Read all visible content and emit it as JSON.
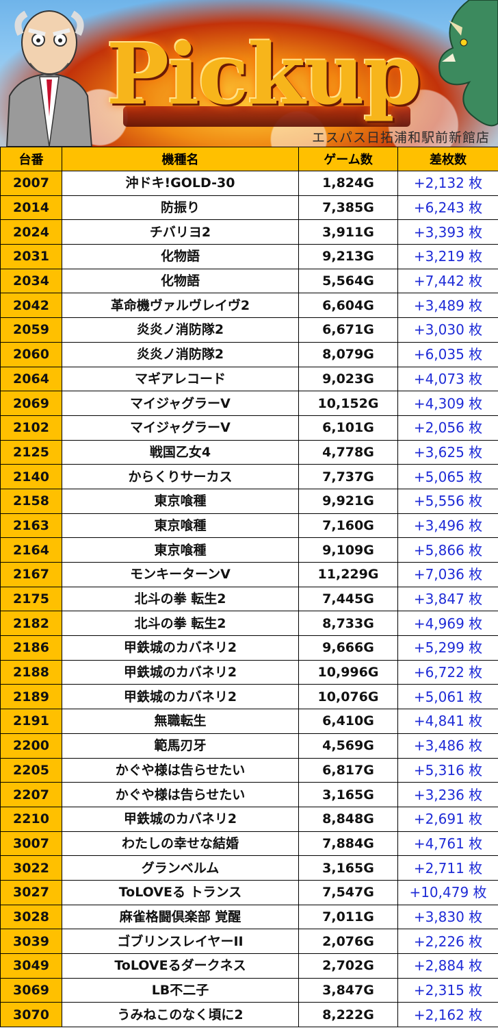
{
  "banner": {
    "logo_text": "Pickup",
    "store_name": "エスパス日拓浦和駅前新館店"
  },
  "table": {
    "headers": [
      "台番",
      "機種名",
      "ゲーム数",
      "差枚数"
    ],
    "rows": [
      {
        "no": "2007",
        "name": "沖ドキ!GOLD-30",
        "games": "1,824G",
        "diff": "+2,132 枚"
      },
      {
        "no": "2014",
        "name": "防振り",
        "games": "7,385G",
        "diff": "+6,243 枚"
      },
      {
        "no": "2024",
        "name": "チバリヨ2",
        "games": "3,911G",
        "diff": "+3,393 枚"
      },
      {
        "no": "2031",
        "name": "化物語",
        "games": "9,213G",
        "diff": "+3,219 枚"
      },
      {
        "no": "2034",
        "name": "化物語",
        "games": "5,564G",
        "diff": "+7,442 枚"
      },
      {
        "no": "2042",
        "name": "革命機ヴァルヴレイヴ2",
        "games": "6,604G",
        "diff": "+3,489 枚"
      },
      {
        "no": "2059",
        "name": "炎炎ノ消防隊2",
        "games": "6,671G",
        "diff": "+3,030 枚"
      },
      {
        "no": "2060",
        "name": "炎炎ノ消防隊2",
        "games": "8,079G",
        "diff": "+6,035 枚"
      },
      {
        "no": "2064",
        "name": "マギアレコード",
        "games": "9,023G",
        "diff": "+4,073 枚"
      },
      {
        "no": "2069",
        "name": "マイジャグラーV",
        "games": "10,152G",
        "diff": "+4,309 枚"
      },
      {
        "no": "2102",
        "name": "マイジャグラーV",
        "games": "6,101G",
        "diff": "+2,056 枚"
      },
      {
        "no": "2125",
        "name": "戦国乙女4",
        "games": "4,778G",
        "diff": "+3,625 枚"
      },
      {
        "no": "2140",
        "name": "からくりサーカス",
        "games": "7,737G",
        "diff": "+5,065 枚"
      },
      {
        "no": "2158",
        "name": "東京喰種",
        "games": "9,921G",
        "diff": "+5,556 枚"
      },
      {
        "no": "2163",
        "name": "東京喰種",
        "games": "7,160G",
        "diff": "+3,496 枚"
      },
      {
        "no": "2164",
        "name": "東京喰種",
        "games": "9,109G",
        "diff": "+5,866 枚"
      },
      {
        "no": "2167",
        "name": "モンキーターンV",
        "games": "11,229G",
        "diff": "+7,036 枚"
      },
      {
        "no": "2175",
        "name": "北斗の拳 転生2",
        "games": "7,445G",
        "diff": "+3,847 枚"
      },
      {
        "no": "2182",
        "name": "北斗の拳 転生2",
        "games": "8,733G",
        "diff": "+4,969 枚"
      },
      {
        "no": "2186",
        "name": "甲鉄城のカバネリ2",
        "games": "9,666G",
        "diff": "+5,299 枚"
      },
      {
        "no": "2188",
        "name": "甲鉄城のカバネリ2",
        "games": "10,996G",
        "diff": "+6,722 枚"
      },
      {
        "no": "2189",
        "name": "甲鉄城のカバネリ2",
        "games": "10,076G",
        "diff": "+5,061 枚"
      },
      {
        "no": "2191",
        "name": "無職転生",
        "games": "6,410G",
        "diff": "+4,841 枚"
      },
      {
        "no": "2200",
        "name": "範馬刃牙",
        "games": "4,569G",
        "diff": "+3,486 枚"
      },
      {
        "no": "2205",
        "name": "かぐや様は告らせたい",
        "games": "6,817G",
        "diff": "+5,316 枚"
      },
      {
        "no": "2207",
        "name": "かぐや様は告らせたい",
        "games": "3,165G",
        "diff": "+3,236 枚"
      },
      {
        "no": "2210",
        "name": "甲鉄城のカバネリ2",
        "games": "8,848G",
        "diff": "+2,691 枚"
      },
      {
        "no": "3007",
        "name": "わたしの幸せな結婚",
        "games": "7,884G",
        "diff": "+4,761 枚"
      },
      {
        "no": "3022",
        "name": "グランベルム",
        "games": "3,165G",
        "diff": "+2,711 枚"
      },
      {
        "no": "3027",
        "name": "ToLOVEる トランス",
        "games": "7,547G",
        "diff": "+10,479 枚"
      },
      {
        "no": "3028",
        "name": "麻雀格闘倶楽部 覚醒",
        "games": "7,011G",
        "diff": "+3,830 枚"
      },
      {
        "no": "3039",
        "name": "ゴブリンスレイヤーII",
        "games": "2,076G",
        "diff": "+2,226 枚"
      },
      {
        "no": "3049",
        "name": "ToLOVEるダークネス",
        "games": "2,702G",
        "diff": "+2,884 枚"
      },
      {
        "no": "3069",
        "name": "LB不二子",
        "games": "3,847G",
        "diff": "+2,315 枚"
      },
      {
        "no": "3070",
        "name": "うみねこのなく頃に2",
        "games": "8,222G",
        "diff": "+2,162 枚"
      }
    ]
  }
}
